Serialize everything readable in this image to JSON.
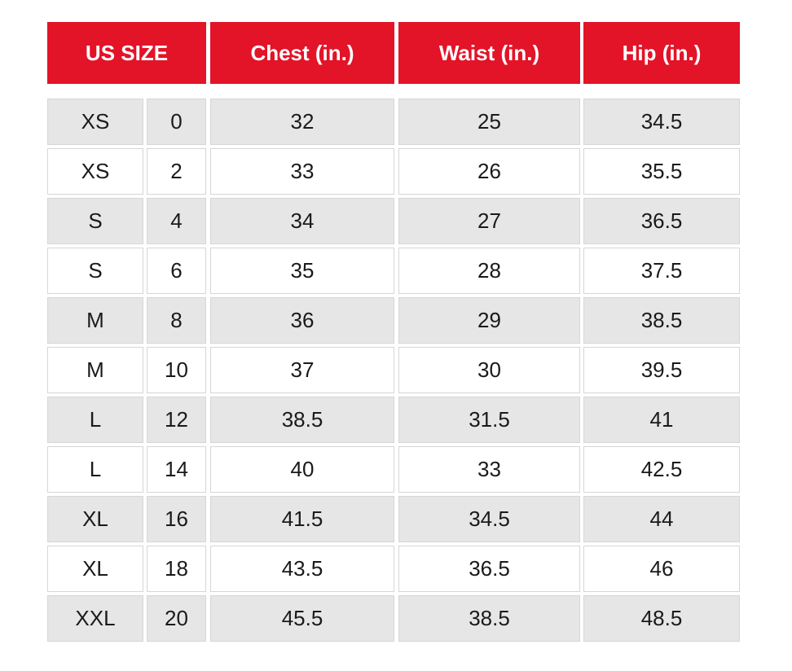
{
  "table": {
    "header": [
      "US SIZE",
      "Chest (in.)",
      "Waist (in.)",
      "Hip (in.)"
    ],
    "rows": [
      [
        "XS",
        "0",
        "32",
        "25",
        "34.5"
      ],
      [
        "XS",
        "2",
        "33",
        "26",
        "35.5"
      ],
      [
        "S",
        "4",
        "34",
        "27",
        "36.5"
      ],
      [
        "S",
        "6",
        "35",
        "28",
        "37.5"
      ],
      [
        "M",
        "8",
        "36",
        "29",
        "38.5"
      ],
      [
        "M",
        "10",
        "37",
        "30",
        "39.5"
      ],
      [
        "L",
        "12",
        "38.5",
        "31.5",
        "41"
      ],
      [
        "L",
        "14",
        "40",
        "33",
        "42.5"
      ],
      [
        "XL",
        "16",
        "41.5",
        "34.5",
        "44"
      ],
      [
        "XL",
        "18",
        "43.5",
        "36.5",
        "46"
      ],
      [
        "XXL",
        "20",
        "45.5",
        "38.5",
        "48.5"
      ]
    ]
  }
}
